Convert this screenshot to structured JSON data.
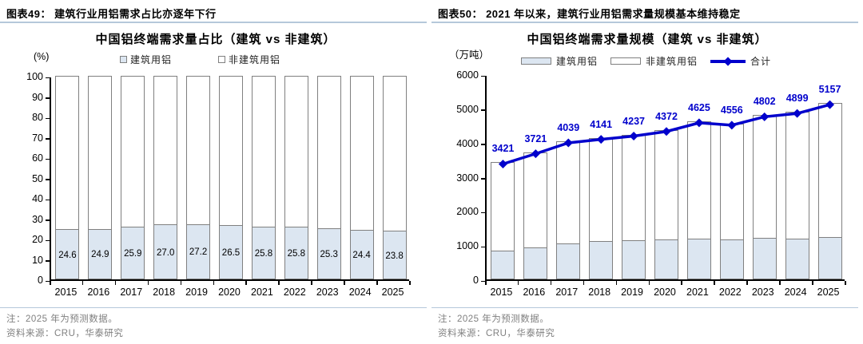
{
  "figures": [
    {
      "header": "图表49：  建筑行业用铝需求占比亦逐年下行",
      "title": "中国铝终端需求量占比（建筑 vs 非建筑）",
      "unit": "(%)",
      "note": "注：2025 年为预测数据。",
      "source": "资料来源：CRU，华泰研究"
    },
    {
      "header": "图表50：  2021 年以来，建筑行业用铝需求量规模基本维持稳定",
      "title": "中国铝终端需求量规模（建筑 vs 非建筑）",
      "unit": "（万吨）",
      "note": "注：2025 年为预测数据。",
      "source": "资料来源：CRU，华泰研究"
    }
  ],
  "chart_data": [
    {
      "type": "bar",
      "stacked": true,
      "title": "中国铝终端需求量占比（建筑 vs 非建筑）",
      "categories": [
        "2015",
        "2016",
        "2017",
        "2018",
        "2019",
        "2020",
        "2021",
        "2022",
        "2023",
        "2024",
        "2025"
      ],
      "series": [
        {
          "name": "建筑用铝",
          "values": [
            24.6,
            24.9,
            25.9,
            27.0,
            27.2,
            26.5,
            25.8,
            25.8,
            25.3,
            24.4,
            23.8
          ],
          "color": "#dce6f1",
          "border": "#808080"
        },
        {
          "name": "非建筑用铝",
          "values": [
            75.4,
            75.1,
            74.1,
            73.0,
            72.8,
            73.5,
            74.2,
            74.2,
            74.7,
            75.6,
            76.2
          ],
          "color": "#ffffff",
          "border": "#808080"
        }
      ],
      "bar_labels": [
        "24.6",
        "24.9",
        "25.9",
        "27.0",
        "27.2",
        "26.5",
        "25.8",
        "25.8",
        "25.3",
        "24.4",
        "23.8"
      ],
      "ylabel": "(%)",
      "ylim": [
        0,
        100
      ],
      "yticks": [
        0,
        10,
        20,
        30,
        40,
        50,
        60,
        70,
        80,
        90,
        100
      ],
      "grid": false,
      "legend_position": "top"
    },
    {
      "type": "bar+line",
      "stacked": true,
      "title": "中国铝终端需求量规模（建筑 vs 非建筑）",
      "categories": [
        "2015",
        "2016",
        "2017",
        "2018",
        "2019",
        "2020",
        "2021",
        "2022",
        "2023",
        "2024",
        "2025"
      ],
      "series": [
        {
          "name": "建筑用铝",
          "values": [
            842,
            927,
            1046,
            1118,
            1152,
            1159,
            1193,
            1175,
            1215,
            1195,
            1227
          ],
          "color": "#dce6f1",
          "border": "#808080"
        },
        {
          "name": "非建筑用铝",
          "values": [
            2579,
            2794,
            2993,
            3023,
            3085,
            3213,
            3432,
            3381,
            3587,
            3704,
            3930
          ],
          "color": "#ffffff",
          "border": "#808080"
        }
      ],
      "line": {
        "name": "合计",
        "values": [
          3421,
          3721,
          4039,
          4141,
          4237,
          4372,
          4625,
          4556,
          4802,
          4899,
          5157
        ],
        "labels": [
          "3421",
          "3721",
          "4039",
          "4141",
          "4237",
          "4372",
          "4625",
          "4556",
          "4802",
          "4899",
          "5157"
        ],
        "color": "#0000cc"
      },
      "ylabel": "（万吨）",
      "ylim": [
        0,
        6000
      ],
      "yticks": [
        0,
        1000,
        2000,
        3000,
        4000,
        5000,
        6000
      ],
      "grid": false,
      "legend_position": "top"
    }
  ],
  "colors": {
    "construction_fill": "#dce6f1",
    "non_construction_fill": "#ffffff",
    "bar_border": "#808080",
    "total_line": "#0000cc",
    "header_rule": "#b5c8da",
    "note_text": "#808080"
  }
}
